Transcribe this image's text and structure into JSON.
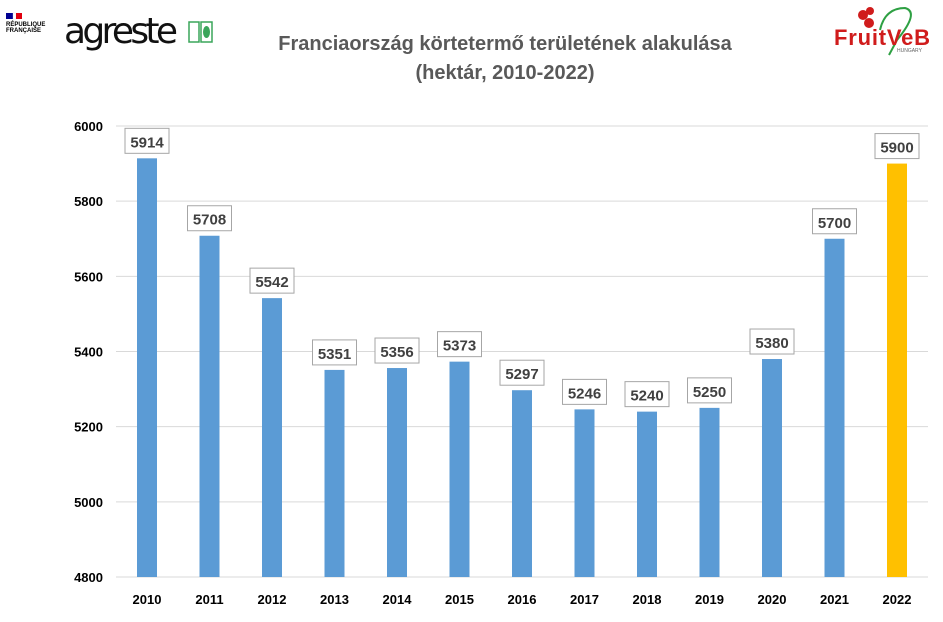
{
  "logos": {
    "republique": [
      "RÉPUBLIQUE",
      "FRANÇAISE"
    ],
    "agreste": "agreste",
    "fruitveb": "FruitVeB",
    "fruitveb_sub": "HUNGARY"
  },
  "colors": {
    "bar": "#5B9BD5",
    "highlight": "#FFC000",
    "title": "#595959"
  },
  "chart_data": {
    "type": "bar",
    "title": "Franciaország körtetermő területének alakulása",
    "subtitle": "(hektár, 2010-2022)",
    "xlabel": "",
    "ylabel": "",
    "categories": [
      "2010",
      "2011",
      "2012",
      "2013",
      "2014",
      "2015",
      "2016",
      "2017",
      "2018",
      "2019",
      "2020",
      "2021",
      "2022"
    ],
    "values": [
      5914,
      5708,
      5542,
      5351,
      5356,
      5373,
      5297,
      5246,
      5240,
      5250,
      5380,
      5700,
      5900
    ],
    "highlight_index": 12,
    "ylim": [
      4800,
      6000
    ],
    "yticks": [
      4800,
      5000,
      5200,
      5400,
      5600,
      5800,
      6000
    ],
    "grid": true,
    "legend": "none"
  }
}
